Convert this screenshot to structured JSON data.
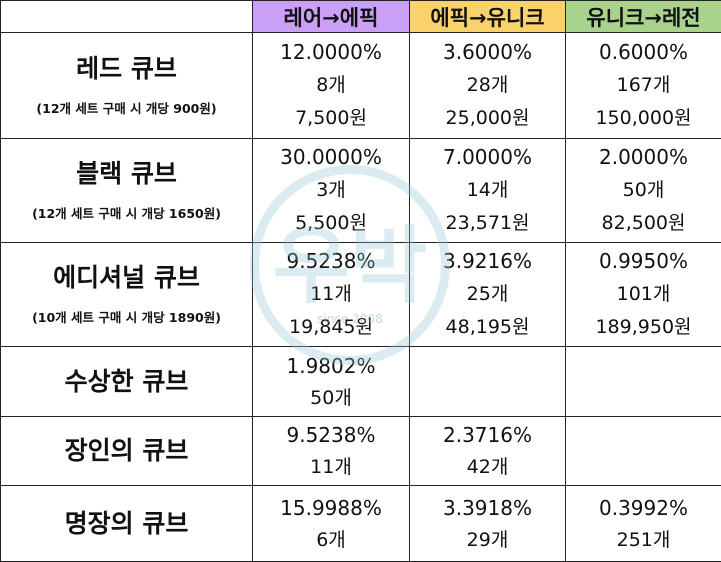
{
  "headers": [
    "레어→에픽",
    "에픽→유니크",
    "유니크→레전"
  ],
  "header_colors": [
    "#c9a0f5",
    "#f9d26b",
    "#a9d28d"
  ],
  "rows": [
    {
      "name": "레드 큐브",
      "note": "(12개 세트 구매 시 개당 900원)",
      "cells": [
        [
          "12.0000%",
          "8개",
          "7,500원"
        ],
        [
          "3.6000%",
          "28개",
          "25,000원"
        ],
        [
          "0.6000%",
          "167개",
          "150,000원"
        ]
      ]
    },
    {
      "name": "블랙 큐브",
      "note": "(12개 세트 구매 시 개당 1650원)",
      "cells": [
        [
          "30.0000%",
          "3개",
          "5,500원"
        ],
        [
          "7.0000%",
          "14개",
          "23,571원"
        ],
        [
          "2.0000%",
          "50개",
          "82,500원"
        ]
      ]
    },
    {
      "name": "에디셔널 큐브",
      "note": "(10개 세트 구매 시 개당 1890원)",
      "cells": [
        [
          "9.5238%",
          "11개",
          "19,845원"
        ],
        [
          "3.9216%",
          "25개",
          "48,195원"
        ],
        [
          "0.9950%",
          "101개",
          "189,950원"
        ]
      ]
    },
    {
      "name": "수상한 큐브",
      "note": "",
      "cells": [
        [
          "1.9802%",
          "50개"
        ],
        [],
        []
      ]
    },
    {
      "name": "장인의 큐브",
      "note": "",
      "cells": [
        [
          "9.5238%",
          "11개"
        ],
        [
          "2.3716%",
          "42개"
        ],
        []
      ]
    },
    {
      "name": "명장의 큐브",
      "note": "",
      "cells": [
        [
          "15.9988%",
          "6개"
        ],
        [
          "3.3918%",
          "29개"
        ],
        [
          "0.3992%",
          "251개"
        ]
      ]
    }
  ],
  "watermark": {
    "text": "우박",
    "subtext": "since 2008"
  }
}
